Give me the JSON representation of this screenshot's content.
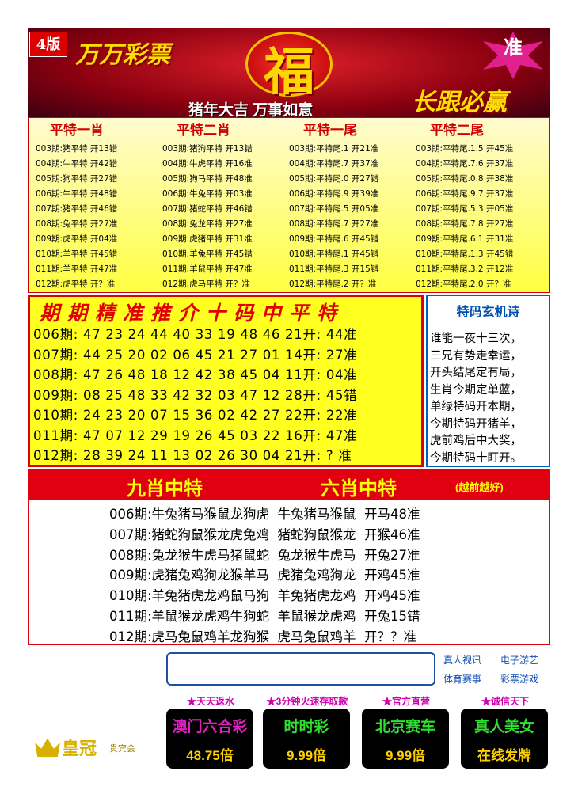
{
  "header": {
    "badge": "4版",
    "brand": "万万彩票",
    "fu": "福",
    "zhun": "准",
    "slogan": "猪年大吉 万事如意",
    "motto": "长跟必赢"
  },
  "table": {
    "headers": [
      "平特一肖",
      "平特二肖",
      "平特一尾",
      "平特二尾"
    ],
    "rows": [
      [
        "003期:猪平特 开13错",
        "003期:猪狗平特 开13错",
        "003期:平特尾.1 开21准",
        "003期:平特尾.1.5 开45准"
      ],
      [
        "004期:牛平特 开42错",
        "004期:牛虎平特 开16准",
        "004期:平特尾.7 开37准",
        "004期:平特尾.7.6 开37准"
      ],
      [
        "005期:狗平特 开27错",
        "005期:狗马平特 开48准",
        "005期:平特尾.0 开27错",
        "005期:平特尾.0.8 开38准"
      ],
      [
        "006期:牛平特 开48错",
        "006期:牛兔平特 开03准",
        "006期:平特尾.9 开39准",
        "006期:平特尾.9.7 开37准"
      ],
      [
        "007期:猪平特 开46错",
        "007期:猪蛇平特 开46错",
        "007期:平特尾.5 开05准",
        "007期:平特尾.5.3 开05准"
      ],
      [
        "008期:兔平特 开27准",
        "008期:兔龙平特 开27准",
        "008期:平特尾.7 开27准",
        "008期:平特尾.7.8 开27准"
      ],
      [
        "009期:虎平特 开04准",
        "009期:虎猪平特 开31准",
        "009期:平特尾.6 开45错",
        "009期:平特尾.6.1 开31准"
      ],
      [
        "010期:羊平特 开45错",
        "010期:羊兔平特 开45错",
        "010期:平特尾.1 开45错",
        "010期:平特尾.1.3 开45错"
      ],
      [
        "011期:羊平特 开47准",
        "011期:羊鼠平特 开47准",
        "011期:平特尾.3 开15错",
        "011期:平特尾.3.2 开12准"
      ],
      [
        "012期:虎平特 开？准",
        "012期:虎马平特 开？准",
        "012期:平特尾.2 开？准",
        "012期:平特尾.2.0 开？准"
      ]
    ]
  },
  "ten_code": {
    "title": "期期精准推介十码中平特",
    "rows": [
      "006期: 47 23 24 44 40 33 19 48 46 21开: 44准",
      "007期: 44 25 20 02 06 45 21 27 01 14开: 27准",
      "008期: 47 26 48 18 12 42 38 45 04 11开: 04准",
      "009期: 08 25 48 33 42 32 03 47 12 28开: 45错",
      "010期: 24 23 20 07 15 36 02 42 27 22开: 22准",
      "011期: 47 07 12 29 19 26 45 03 22 16开: 47准",
      "012期: 28 39 24 11 13 02 26 30 04 21开: ? 准"
    ]
  },
  "poem": {
    "title": "特码玄机诗",
    "lines": [
      "谁能一夜十三次，",
      "三兄有势走幸运，",
      "开头结尾定有局，",
      "生肖今期定单蓝，",
      "单绿特码开本期，",
      "今期特码开猪羊，",
      "虎前鸡后中大奖，",
      "今期特码十盯开。"
    ]
  },
  "zodiac": {
    "title1": "九肖中特",
    "title2": "六肖中特",
    "note": "(越前越好)",
    "rows": [
      "006期:牛兔猪马猴鼠龙狗虎  牛兔猪马猴鼠  开马48准",
      "007期:猪蛇狗鼠猴龙虎兔鸡  猪蛇狗鼠猴龙  开猴46准",
      "008期:兔龙猴牛虎马猪鼠蛇  兔龙猴牛虎马  开兔27准",
      "009期:虎猪兔鸡狗龙猴羊马  虎猪兔鸡狗龙  开鸡45准",
      "010期:羊兔猪虎龙鸡鼠马狗  羊兔猪虎龙鸡  开鸡45准",
      "011期:羊鼠猴龙虎鸡牛狗蛇  羊鼠猴龙虎鸡  开兔15错",
      "012期:虎马兔鼠鸡羊龙狗猴  虎马兔鼠鸡羊  开？？准"
    ]
  },
  "footer": {
    "links": [
      "真人视讯",
      "电子游艺",
      "体育赛事",
      "彩票游戏"
    ],
    "promos": [
      {
        "tag": "★天天返水",
        "name": "澳门六合彩",
        "value": "48.75倍"
      },
      {
        "tag": "★3分钟火速存取款",
        "name": "时时彩",
        "value": "9.99倍"
      },
      {
        "tag": "★官方直营",
        "name": "北京赛车",
        "value": "9.99倍"
      },
      {
        "tag": "★诚信天下",
        "name": "真人美女",
        "value": "在线发牌"
      }
    ],
    "logo": "皇冠",
    "logo_sub": "贵宾会"
  }
}
